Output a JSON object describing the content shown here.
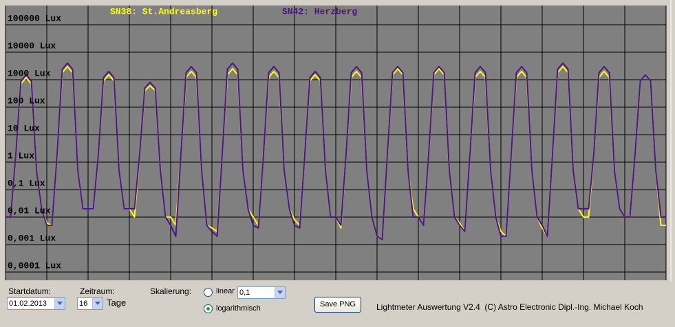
{
  "chart_data": {
    "type": "line",
    "log_scale": true,
    "grid": true,
    "legend": "top",
    "ylim": [
      5e-05,
      500000
    ],
    "yticks": [
      {
        "value": 100000,
        "label": "100000 Lux"
      },
      {
        "value": 10000,
        "label": "10000 Lux"
      },
      {
        "value": 1000,
        "label": "1000 Lux"
      },
      {
        "value": 100,
        "label": "100 Lux"
      },
      {
        "value": 10,
        "label": "10 Lux"
      },
      {
        "value": 1,
        "label": "1 Lux"
      },
      {
        "value": 0.1,
        "label": "0,1 Lux"
      },
      {
        "value": 0.01,
        "label": "0,01 Lux"
      },
      {
        "value": 0.001,
        "label": "0,001 Lux"
      },
      {
        "value": 0.0001,
        "label": "0,0001 Lux"
      }
    ],
    "series": [
      {
        "name": "SN38: St.Andreasberg",
        "color": "#ffff00",
        "values": [
          0.01,
          0.01,
          2,
          700,
          1200,
          700,
          0.5,
          0.02,
          0.006,
          0.005,
          2,
          1800,
          3000,
          1800,
          0.5,
          0.02,
          0.02,
          0.02,
          2,
          900,
          1500,
          900,
          0.5,
          0.02,
          0.02,
          0.01,
          2,
          400,
          600,
          400,
          0.5,
          0.01,
          0.01,
          0.005,
          2,
          1200,
          2000,
          1200,
          0.5,
          0.005,
          0.004,
          0.003,
          2,
          1500,
          2500,
          1500,
          0.5,
          0.02,
          0.01,
          0.005,
          2,
          1200,
          2000,
          1200,
          0.5,
          0.02,
          0.008,
          0.005,
          2,
          900,
          1500,
          900,
          0.5,
          0.01,
          0.01,
          0.004,
          2,
          1200,
          2000,
          1200,
          0.5,
          0.01,
          0.002,
          0.0015,
          2,
          1500,
          2500,
          1500,
          0.5,
          0.02,
          0.01,
          0.005,
          2,
          1500,
          2500,
          1500,
          0.5,
          0.01,
          0.006,
          0.003,
          2,
          1200,
          2000,
          1200,
          0.5,
          0.01,
          0.003,
          0.002,
          2,
          1200,
          2000,
          1200,
          0.5,
          0.01,
          0.004,
          0.002,
          2,
          1800,
          3000,
          1800,
          0.5,
          0.02,
          0.01,
          0.01,
          2,
          1200,
          2000,
          1200,
          0.5,
          0.02,
          0.01,
          0.01,
          2,
          900,
          1500,
          900,
          0.5,
          0.005,
          0.005
        ]
      },
      {
        "name": "SN42: Herzberg",
        "color": "#4b148c",
        "values": [
          0.01,
          0.01,
          2,
          900,
          1500,
          900,
          0.5,
          0.02,
          0.005,
          0.005,
          2,
          2400,
          4000,
          2400,
          0.5,
          0.02,
          0.02,
          0.02,
          2,
          1200,
          2000,
          1200,
          0.5,
          0.02,
          0.02,
          0.02,
          2,
          500,
          800,
          500,
          0.5,
          0.01,
          0.005,
          0.002,
          2,
          1800,
          3000,
          1800,
          0.5,
          0.005,
          0.003,
          0.002,
          2,
          2400,
          4000,
          2400,
          0.5,
          0.02,
          0.005,
          0.004,
          2,
          1800,
          3000,
          1800,
          0.5,
          0.02,
          0.005,
          0.004,
          2,
          1200,
          2000,
          1200,
          0.5,
          0.01,
          0.01,
          0.005,
          2,
          1800,
          3000,
          1800,
          0.5,
          0.01,
          0.002,
          0.0015,
          2,
          1800,
          3000,
          1800,
          0.5,
          0.01,
          0.01,
          0.005,
          2,
          1800,
          3000,
          1800,
          0.5,
          0.01,
          0.005,
          0.003,
          2,
          1800,
          3000,
          1800,
          0.5,
          0.01,
          0.002,
          0.002,
          2,
          1800,
          3000,
          1800,
          0.5,
          0.01,
          0.005,
          0.002,
          2,
          2400,
          4000,
          2400,
          0.5,
          0.02,
          0.02,
          0.02,
          2,
          1800,
          3000,
          1800,
          0.5,
          0.02,
          0.01,
          0.01,
          2,
          900,
          1500,
          900,
          0.5,
          0.01,
          0.01
        ]
      }
    ]
  },
  "ui": {
    "start_label": "Startdatum:",
    "start_date": "01.02.2013",
    "period_label": "Zeitraum:",
    "period_value": "16",
    "period_unit": "Tage",
    "scale_label": "Skalierung:",
    "linear_label": "linear",
    "linear_factor": "0,1",
    "log_label": "logarithmisch",
    "save_button": "Save PNG",
    "footer": "Lightmeter Auswertung V2.4  (C) Astro Electronic Dipl.-Ing. Michael Koch"
  }
}
